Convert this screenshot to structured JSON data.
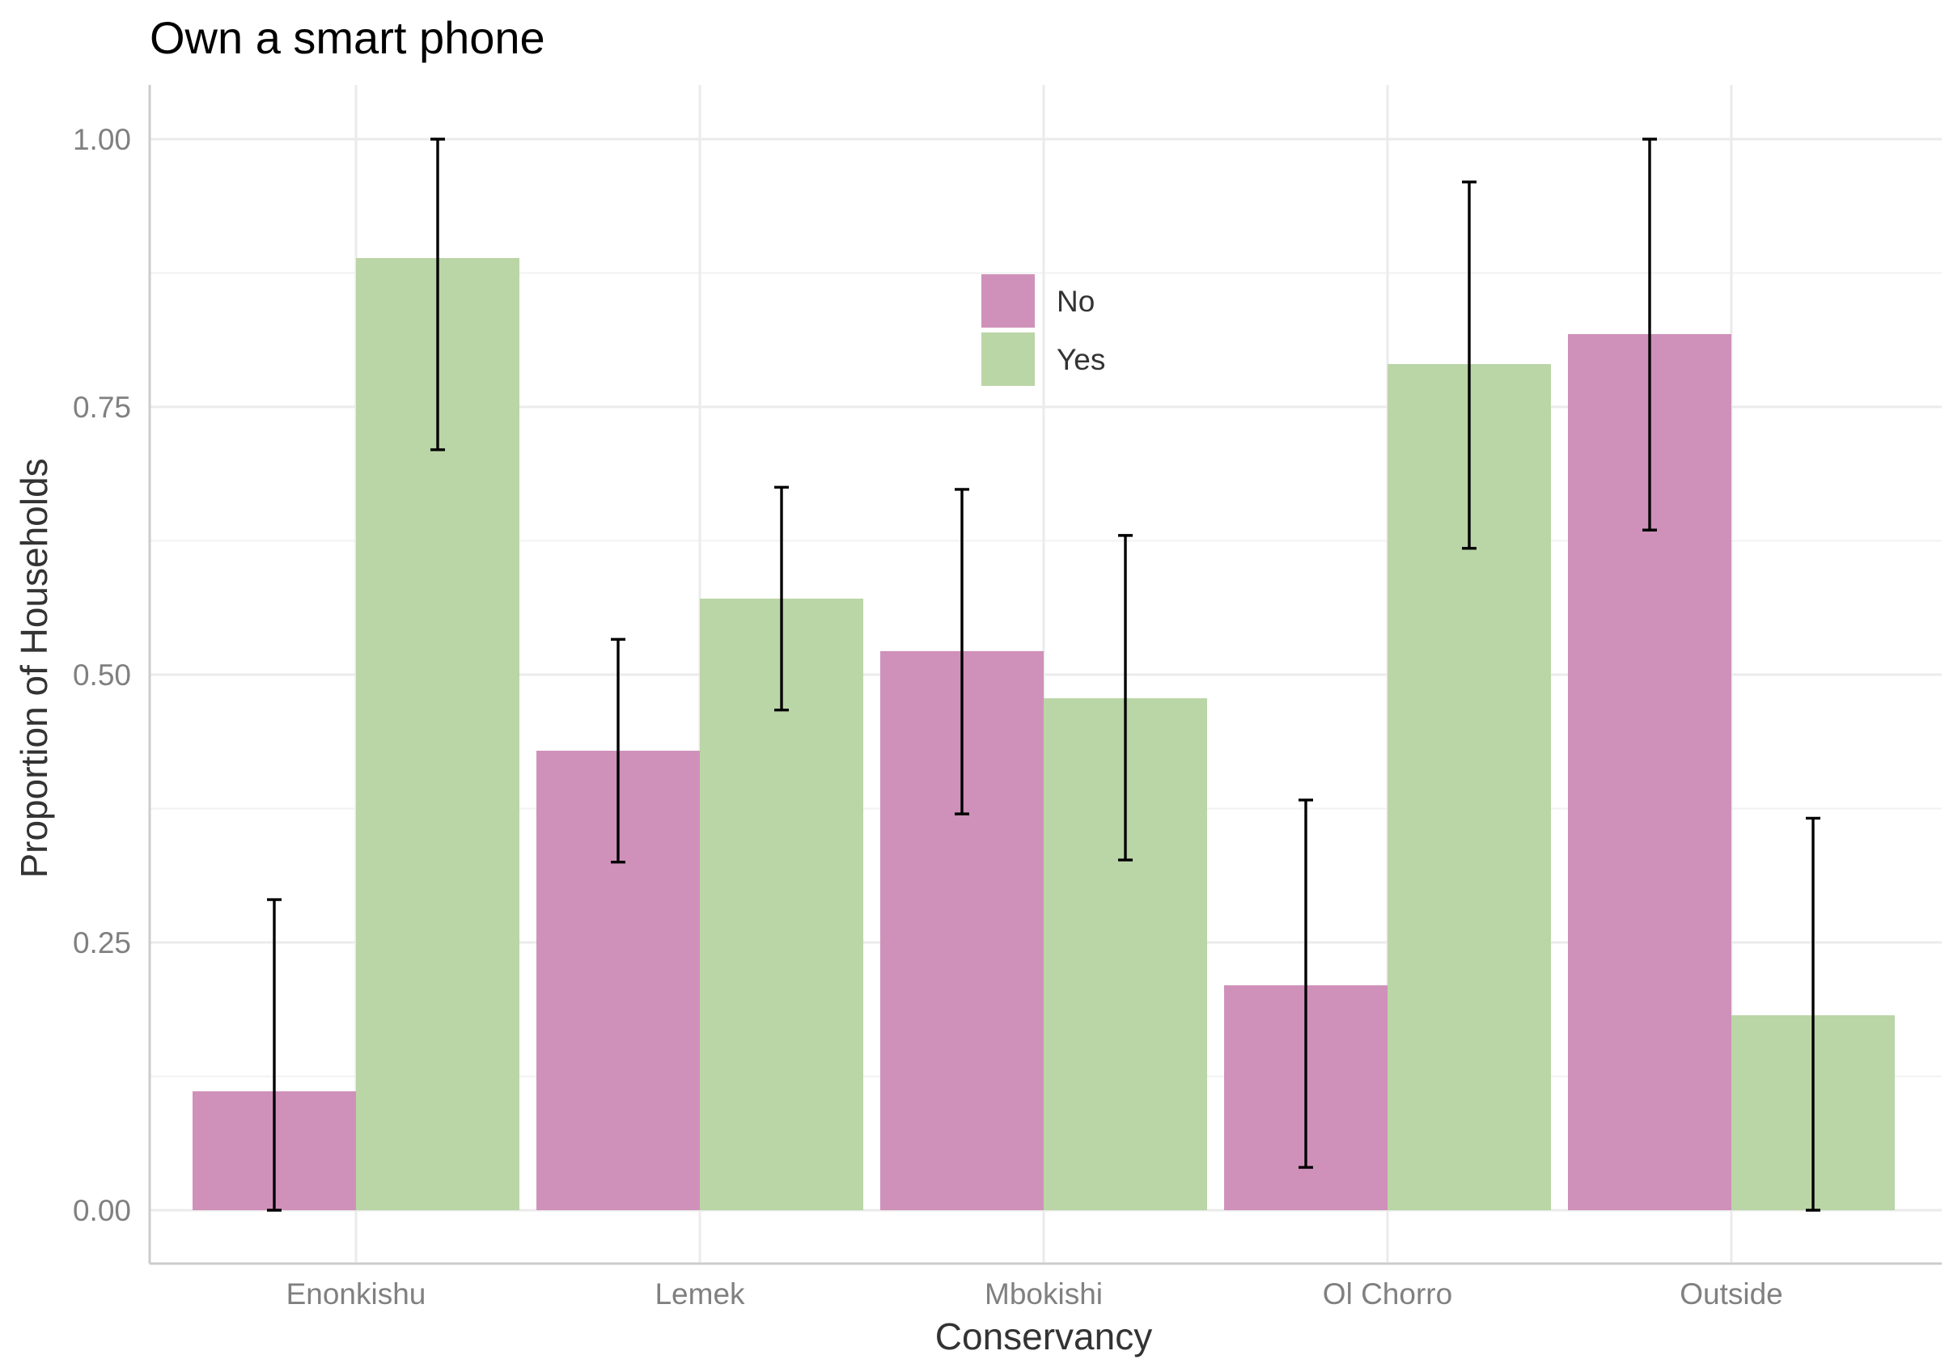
{
  "chart_data": {
    "type": "bar",
    "title": "Own a smart phone",
    "xlabel": "Conservancy",
    "ylabel": "Proportion of Households",
    "categories": [
      "Enonkishu",
      "Lemek",
      "Mbokishi",
      "Ol Chorro",
      "Outside"
    ],
    "ylim": [
      -0.05,
      1.05
    ],
    "yticks": [
      0.0,
      0.25,
      0.5,
      0.75,
      1.0
    ],
    "ytick_labels": [
      "0.00",
      "0.25",
      "0.50",
      "0.75",
      "1.00"
    ],
    "grid": true,
    "legend_position": "inside-top-center",
    "series": [
      {
        "name": "No",
        "color": "#cf91ba",
        "values": [
          0.111,
          0.429,
          0.522,
          0.21,
          0.818
        ],
        "error_low": [
          0.0,
          0.325,
          0.37,
          0.04,
          0.635
        ],
        "error_high": [
          0.29,
          0.533,
          0.673,
          0.383,
          1.0
        ]
      },
      {
        "name": "Yes",
        "color": "#bad5a6",
        "values": [
          0.889,
          0.571,
          0.478,
          0.79,
          0.182
        ],
        "error_low": [
          0.71,
          0.467,
          0.327,
          0.618,
          0.0
        ],
        "error_high": [
          1.0,
          0.675,
          0.63,
          0.96,
          0.366
        ]
      }
    ]
  }
}
